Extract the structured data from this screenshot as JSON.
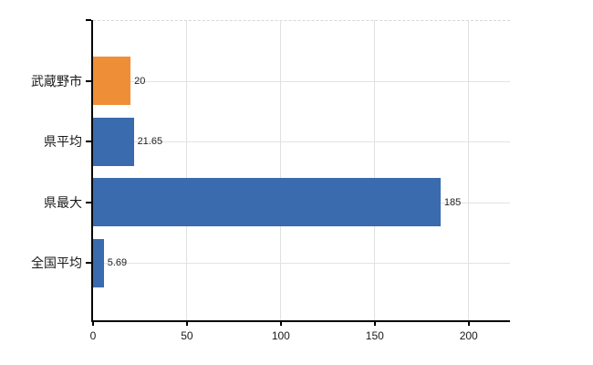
{
  "colors": {
    "background": "#ffffff",
    "axis": "#000000",
    "gridline": "#dfe2df",
    "text": "#1a1a1a",
    "bar_blue": "#3a6bae",
    "bar_orange": "#ee8f37"
  },
  "chart_data": {
    "type": "bar",
    "orientation": "horizontal",
    "title": "",
    "xlabel": "",
    "ylabel": "",
    "legend": null,
    "grid": true,
    "categories": [
      "武蔵野市",
      "県平均",
      "県最大",
      "全国平均"
    ],
    "values": [
      20,
      21.65,
      185,
      5.69
    ],
    "value_labels": [
      "20",
      "21.65",
      "185",
      "5.69"
    ],
    "bar_colors": [
      "#ee8f37",
      "#3a6bae",
      "#3a6bae",
      "#3a6bae"
    ],
    "x_ticks": [
      0,
      50,
      100,
      150,
      200
    ],
    "x_tick_labels": [
      "0",
      "50",
      "100",
      "150",
      "200"
    ],
    "xlim": [
      0,
      222
    ]
  }
}
